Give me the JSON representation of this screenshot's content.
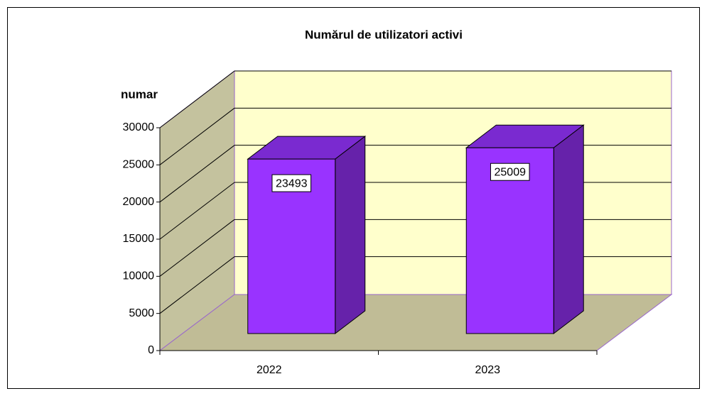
{
  "chart_data": {
    "type": "bar",
    "title": "Numărul de utilizatori activi",
    "y_label": "numar",
    "categories": [
      "2022",
      "2023"
    ],
    "values": [
      23493,
      25009
    ],
    "color": "#9933ff",
    "ylim": [
      0,
      30000
    ],
    "yticks": [
      0,
      5000,
      10000,
      15000,
      20000,
      25000,
      30000
    ],
    "grid": true
  }
}
